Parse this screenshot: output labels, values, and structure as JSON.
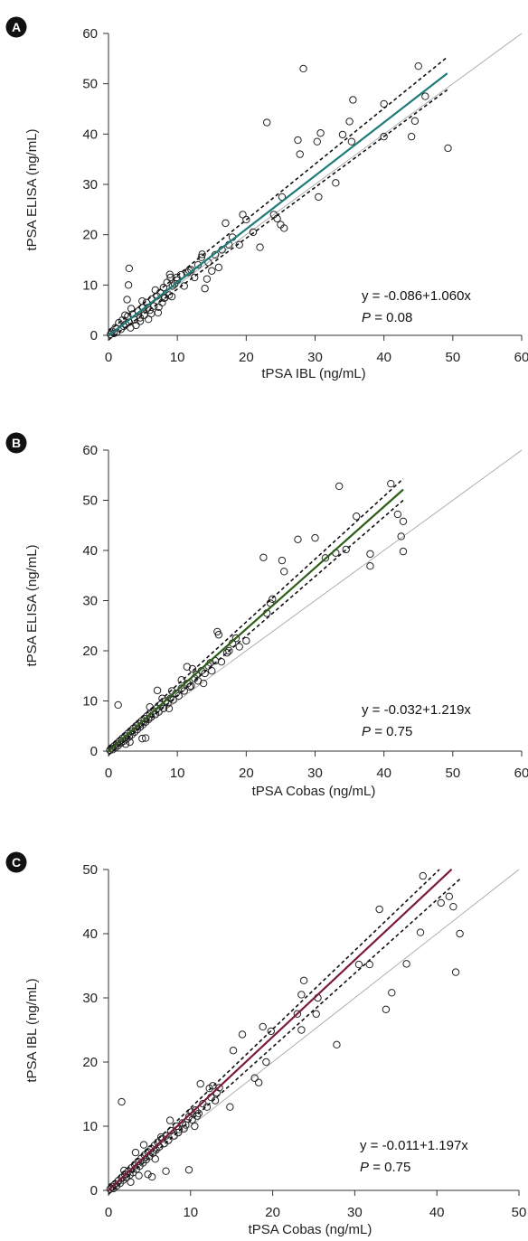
{
  "chart_data": [
    {
      "type": "scatter",
      "panel_label": "A",
      "xlabel": "tPSA IBL (ng/mL)",
      "ylabel": "tPSA ELISA (ng/mL)",
      "xlim": [
        0,
        60
      ],
      "ylim": [
        0,
        60
      ],
      "xticks": [
        0,
        10,
        20,
        30,
        40,
        50,
        60
      ],
      "yticks": [
        0,
        10,
        20,
        30,
        40,
        50,
        60
      ],
      "equation": "y = -0.086+1.060x",
      "p_label": "P",
      "p_value": "= 0.08",
      "fit_color": "#1f7a7a",
      "fit": {
        "intercept": -0.086,
        "slope": 1.06,
        "x_range": [
          0,
          49.2
        ]
      },
      "ci_upper": {
        "x": [
          0,
          49.2
        ],
        "y": [
          0.8,
          55.3
        ]
      },
      "ci_lower": {
        "x": [
          0,
          49.2
        ],
        "y": [
          -0.9,
          48.8
        ]
      },
      "identity_line": {
        "x": [
          0,
          60
        ],
        "y": [
          0,
          60
        ]
      },
      "points": [
        [
          0.3,
          0.2
        ],
        [
          0.5,
          0.8
        ],
        [
          0.8,
          0.4
        ],
        [
          1.0,
          1.5
        ],
        [
          1.2,
          0.6
        ],
        [
          1.5,
          2.5
        ],
        [
          1.8,
          1.2
        ],
        [
          2.0,
          3.0
        ],
        [
          2.2,
          1.8
        ],
        [
          2.5,
          2.2
        ],
        [
          2.8,
          3.8
        ],
        [
          3.0,
          2.6
        ],
        [
          3.2,
          1.5
        ],
        [
          3.5,
          4.2
        ],
        [
          3.8,
          3.1
        ],
        [
          4.0,
          2.0
        ],
        [
          4.3,
          4.8
        ],
        [
          4.6,
          3.5
        ],
        [
          5.0,
          5.5
        ],
        [
          5.2,
          4.0
        ],
        [
          5.5,
          6.5
        ],
        [
          5.8,
          3.2
        ],
        [
          6.0,
          5.0
        ],
        [
          6.3,
          7.2
        ],
        [
          6.6,
          5.8
        ],
        [
          7.0,
          7.8
        ],
        [
          7.2,
          4.5
        ],
        [
          7.5,
          8.5
        ],
        [
          7.8,
          6.5
        ],
        [
          8.0,
          9.5
        ],
        [
          8.2,
          7.5
        ],
        [
          8.5,
          10.5
        ],
        [
          8.8,
          8.0
        ],
        [
          9.0,
          11.5
        ],
        [
          9.3,
          9.8
        ],
        [
          9.6,
          10.2
        ],
        [
          10.0,
          11.0
        ],
        [
          10.5,
          12.0
        ],
        [
          11.0,
          9.8
        ],
        [
          11.5,
          12.5
        ],
        [
          12.0,
          13.0
        ],
        [
          12.5,
          11.5
        ],
        [
          13.0,
          14.0
        ],
        [
          13.5,
          15.5
        ],
        [
          14.0,
          9.3
        ],
        [
          14.5,
          14.5
        ],
        [
          15.0,
          12.8
        ],
        [
          15.5,
          16.0
        ],
        [
          16.0,
          13.5
        ],
        [
          16.5,
          17.0
        ],
        [
          17.0,
          22.3
        ],
        [
          17.5,
          18.0
        ],
        [
          18.0,
          19.5
        ],
        [
          19.0,
          18.0
        ],
        [
          19.5,
          24.0
        ],
        [
          20.0,
          23.0
        ],
        [
          21.0,
          20.5
        ],
        [
          22.0,
          17.5
        ],
        [
          23.0,
          42.3
        ],
        [
          24.0,
          24.0
        ],
        [
          24.5,
          23.2
        ],
        [
          25.0,
          22.0
        ],
        [
          25.5,
          21.3
        ],
        [
          25.2,
          27.5
        ],
        [
          27.5,
          38.8
        ],
        [
          27.8,
          36.0
        ],
        [
          28.3,
          53.0
        ],
        [
          30.3,
          38.5
        ],
        [
          30.5,
          27.5
        ],
        [
          30.8,
          40.2
        ],
        [
          33.0,
          30.3
        ],
        [
          34.0,
          39.9
        ],
        [
          35.0,
          42.5
        ],
        [
          35.3,
          38.5
        ],
        [
          35.5,
          46.8
        ],
        [
          40.0,
          46.0
        ],
        [
          40.0,
          39.5
        ],
        [
          44.0,
          39.5
        ],
        [
          44.5,
          42.6
        ],
        [
          45.0,
          53.5
        ],
        [
          46.0,
          47.5
        ],
        [
          49.3,
          37.2
        ],
        [
          3.0,
          13.3
        ],
        [
          2.9,
          10.0
        ],
        [
          4.9,
          6.8
        ],
        [
          6.8,
          9.0
        ],
        [
          8.9,
          12.1
        ],
        [
          9.9,
          11.5
        ],
        [
          2.7,
          7.1
        ],
        [
          2.4,
          4.0
        ],
        [
          3.3,
          5.3
        ],
        [
          4.6,
          2.8
        ],
        [
          5.7,
          5.5
        ],
        [
          6.2,
          4.3
        ],
        [
          7.3,
          5.6
        ],
        [
          8.1,
          7.4
        ],
        [
          9.2,
          7.7
        ],
        [
          11.7,
          12.9
        ],
        [
          13.6,
          16.1
        ],
        [
          14.3,
          11.2
        ]
      ]
    },
    {
      "type": "scatter",
      "panel_label": "B",
      "xlabel": "tPSA Cobas (ng/mL)",
      "ylabel": "tPSA ELISA (ng/mL)",
      "xlim": [
        0,
        60
      ],
      "ylim": [
        0,
        60
      ],
      "xticks": [
        0,
        10,
        20,
        30,
        40,
        50,
        60
      ],
      "yticks": [
        0,
        10,
        20,
        30,
        40,
        50,
        60
      ],
      "equation": "y = -0.032+1.219x",
      "p_label": "P",
      "p_value": "= 0.75",
      "fit_color": "#2e5e1a",
      "fit": {
        "intercept": -0.032,
        "slope": 1.219,
        "x_range": [
          0,
          42.8
        ]
      },
      "ci_upper": {
        "x": [
          0,
          42.8
        ],
        "y": [
          0.7,
          54.3
        ]
      },
      "ci_lower": {
        "x": [
          0,
          42.8
        ],
        "y": [
          -0.8,
          50.0
        ]
      },
      "identity_line": {
        "x": [
          0,
          60
        ],
        "y": [
          0,
          60
        ]
      },
      "points": [
        [
          0.2,
          0.2
        ],
        [
          0.4,
          0.6
        ],
        [
          0.6,
          0.3
        ],
        [
          0.8,
          1.0
        ],
        [
          1.0,
          0.7
        ],
        [
          1.2,
          1.5
        ],
        [
          1.4,
          1.1
        ],
        [
          1.6,
          2.0
        ],
        [
          1.8,
          1.6
        ],
        [
          2.0,
          2.5
        ],
        [
          2.2,
          2.0
        ],
        [
          2.4,
          3.0
        ],
        [
          2.6,
          2.4
        ],
        [
          2.8,
          3.5
        ],
        [
          3.0,
          2.8
        ],
        [
          3.2,
          4.0
        ],
        [
          3.4,
          3.3
        ],
        [
          3.6,
          4.5
        ],
        [
          3.8,
          3.8
        ],
        [
          4.0,
          5.0
        ],
        [
          4.2,
          4.3
        ],
        [
          4.4,
          5.5
        ],
        [
          4.6,
          4.8
        ],
        [
          4.8,
          6.0
        ],
        [
          5.0,
          5.3
        ],
        [
          5.2,
          6.5
        ],
        [
          5.4,
          5.8
        ],
        [
          5.6,
          7.0
        ],
        [
          5.8,
          6.3
        ],
        [
          6.0,
          7.5
        ],
        [
          6.2,
          6.8
        ],
        [
          6.5,
          8.0
        ],
        [
          6.8,
          7.3
        ],
        [
          7.0,
          8.5
        ],
        [
          7.3,
          7.8
        ],
        [
          7.6,
          9.3
        ],
        [
          8.0,
          8.5
        ],
        [
          8.3,
          10.0
        ],
        [
          8.6,
          9.5
        ],
        [
          9.0,
          10.5
        ],
        [
          9.4,
          10.2
        ],
        [
          9.8,
          11.5
        ],
        [
          10.2,
          11.0
        ],
        [
          10.6,
          12.5
        ],
        [
          11.0,
          12.0
        ],
        [
          11.5,
          13.5
        ],
        [
          12.0,
          13.0
        ],
        [
          12.5,
          14.5
        ],
        [
          13.0,
          14.0
        ],
        [
          13.5,
          16.0
        ],
        [
          14.0,
          15.5
        ],
        [
          14.5,
          17.0
        ],
        [
          15.0,
          16.0
        ],
        [
          15.5,
          18.0
        ],
        [
          15.8,
          23.8
        ],
        [
          16.0,
          23.2
        ],
        [
          17.5,
          20.0
        ],
        [
          18.0,
          21.5
        ],
        [
          18.5,
          22.5
        ],
        [
          19.0,
          20.8
        ],
        [
          20.0,
          22.0
        ],
        [
          22.5,
          38.6
        ],
        [
          23.0,
          27.5
        ],
        [
          23.5,
          29.5
        ],
        [
          23.8,
          30.3
        ],
        [
          25.2,
          38.0
        ],
        [
          25.5,
          35.8
        ],
        [
          27.5,
          42.2
        ],
        [
          30.0,
          42.5
        ],
        [
          31.5,
          38.5
        ],
        [
          33.0,
          39.5
        ],
        [
          33.5,
          52.8
        ],
        [
          34.5,
          40.2
        ],
        [
          36.0,
          46.8
        ],
        [
          38.0,
          39.3
        ],
        [
          38.0,
          36.9
        ],
        [
          41.0,
          53.3
        ],
        [
          42.0,
          47.2
        ],
        [
          42.5,
          42.8
        ],
        [
          42.8,
          45.8
        ],
        [
          42.8,
          39.8
        ],
        [
          1.4,
          9.2
        ],
        [
          4.9,
          2.5
        ],
        [
          5.4,
          2.6
        ],
        [
          6.0,
          8.8
        ],
        [
          7.8,
          10.5
        ],
        [
          9.2,
          12.0
        ],
        [
          10.6,
          14.2
        ],
        [
          11.4,
          16.8
        ],
        [
          12.2,
          16.4
        ],
        [
          12.8,
          15.3
        ],
        [
          14.8,
          17.6
        ],
        [
          16.4,
          17.8
        ],
        [
          17.2,
          19.6
        ],
        [
          3.1,
          1.8
        ],
        [
          2.5,
          1.4
        ],
        [
          7.1,
          12.1
        ],
        [
          8.8,
          8.5
        ],
        [
          11.8,
          12.8
        ],
        [
          13.8,
          13.5
        ]
      ]
    },
    {
      "type": "scatter",
      "panel_label": "C",
      "xlabel": "tPSA Cobas (ng/mL)",
      "ylabel": "tPSA IBL (ng/mL)",
      "xlim": [
        0,
        50
      ],
      "ylim": [
        0,
        50
      ],
      "xticks": [
        0,
        10,
        20,
        30,
        40,
        50
      ],
      "yticks": [
        0,
        10,
        20,
        30,
        40,
        50
      ],
      "equation": "y = -0.011+1.197x",
      "p_label": "P",
      "p_value": "= 0.75",
      "fit_color": "#7a1a3a",
      "fit": {
        "intercept": -0.011,
        "slope": 1.197,
        "x_range": [
          0,
          41.8
        ]
      },
      "ci_upper": {
        "x": [
          0,
          40.3
        ],
        "y": [
          0.6,
          50.0
        ]
      },
      "ci_lower": {
        "x": [
          0,
          42.8
        ],
        "y": [
          -0.6,
          48.5
        ]
      },
      "identity_line": {
        "x": [
          0,
          50
        ],
        "y": [
          0,
          50
        ]
      },
      "points": [
        [
          0.2,
          0.2
        ],
        [
          0.4,
          0.6
        ],
        [
          0.6,
          0.3
        ],
        [
          0.8,
          1.0
        ],
        [
          1.0,
          0.7
        ],
        [
          1.2,
          1.5
        ],
        [
          1.4,
          1.1
        ],
        [
          1.6,
          2.0
        ],
        [
          1.8,
          1.6
        ],
        [
          2.0,
          2.5
        ],
        [
          2.2,
          2.0
        ],
        [
          2.4,
          3.0
        ],
        [
          2.6,
          2.4
        ],
        [
          2.8,
          3.5
        ],
        [
          3.0,
          2.8
        ],
        [
          3.2,
          4.0
        ],
        [
          3.4,
          3.3
        ],
        [
          3.6,
          4.5
        ],
        [
          3.8,
          3.8
        ],
        [
          4.0,
          5.0
        ],
        [
          4.2,
          4.3
        ],
        [
          4.4,
          5.5
        ],
        [
          4.6,
          4.8
        ],
        [
          4.8,
          6.0
        ],
        [
          5.0,
          5.3
        ],
        [
          5.2,
          6.5
        ],
        [
          5.4,
          5.8
        ],
        [
          5.6,
          7.0
        ],
        [
          5.8,
          6.3
        ],
        [
          6.0,
          7.5
        ],
        [
          6.2,
          6.8
        ],
        [
          6.5,
          8.0
        ],
        [
          6.8,
          7.3
        ],
        [
          7.0,
          8.5
        ],
        [
          7.3,
          7.8
        ],
        [
          7.6,
          9.3
        ],
        [
          8.0,
          8.5
        ],
        [
          8.3,
          10.0
        ],
        [
          8.6,
          9.5
        ],
        [
          9.0,
          10.5
        ],
        [
          9.4,
          10.2
        ],
        [
          9.8,
          11.5
        ],
        [
          10.2,
          11.0
        ],
        [
          10.6,
          12.5
        ],
        [
          11.0,
          12.0
        ],
        [
          11.5,
          13.5
        ],
        [
          12.0,
          13.0
        ],
        [
          12.5,
          14.5
        ],
        [
          13.0,
          14.0
        ],
        [
          13.5,
          16.0
        ],
        [
          1.6,
          13.8
        ],
        [
          4.8,
          2.5
        ],
        [
          5.3,
          2.1
        ],
        [
          7.0,
          3.0
        ],
        [
          9.8,
          3.2
        ],
        [
          10.5,
          10.0
        ],
        [
          11.2,
          16.6
        ],
        [
          12.3,
          15.9
        ],
        [
          14.8,
          13.0
        ],
        [
          15.2,
          21.8
        ],
        [
          16.3,
          24.3
        ],
        [
          17.8,
          17.5
        ],
        [
          18.3,
          16.8
        ],
        [
          18.8,
          25.5
        ],
        [
          19.2,
          20.0
        ],
        [
          19.8,
          24.8
        ],
        [
          23.0,
          27.5
        ],
        [
          23.5,
          25.0
        ],
        [
          23.5,
          30.5
        ],
        [
          23.8,
          32.7
        ],
        [
          25.3,
          27.5
        ],
        [
          25.5,
          30.0
        ],
        [
          27.8,
          22.7
        ],
        [
          30.5,
          35.2
        ],
        [
          31.8,
          35.2
        ],
        [
          33.0,
          43.8
        ],
        [
          33.8,
          28.2
        ],
        [
          34.5,
          30.8
        ],
        [
          36.3,
          35.3
        ],
        [
          38.0,
          40.2
        ],
        [
          38.3,
          49.0
        ],
        [
          40.5,
          44.8
        ],
        [
          41.5,
          45.8
        ],
        [
          42.0,
          44.2
        ],
        [
          42.3,
          34.0
        ],
        [
          42.8,
          40.0
        ],
        [
          3.3,
          5.9
        ],
        [
          4.3,
          7.1
        ],
        [
          5.7,
          4.9
        ],
        [
          6.4,
          8.3
        ],
        [
          7.5,
          10.9
        ],
        [
          8.5,
          9.0
        ],
        [
          9.2,
          9.6
        ],
        [
          10.1,
          12.2
        ],
        [
          10.8,
          11.6
        ],
        [
          12.7,
          16.3
        ],
        [
          13.2,
          15.2
        ],
        [
          2.7,
          1.3
        ],
        [
          1.9,
          3.1
        ],
        [
          3.7,
          2.3
        ]
      ]
    }
  ]
}
